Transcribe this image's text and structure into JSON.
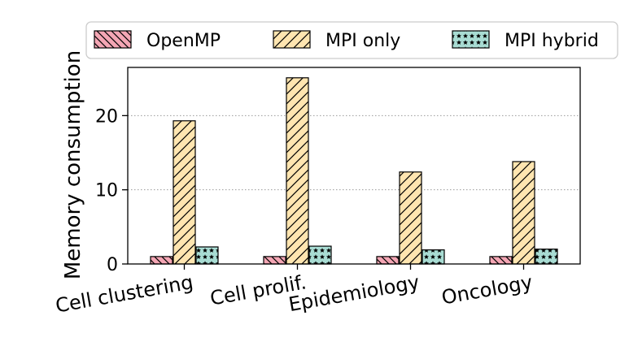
{
  "chart_data": {
    "type": "bar",
    "title": "",
    "xlabel": "",
    "ylabel": "Memory consumption",
    "ylim": [
      0,
      26.5
    ],
    "yticks": [
      0,
      10,
      20
    ],
    "grid": "y",
    "legend_position": "top",
    "categories": [
      "Cell clustering",
      "Cell prolif.",
      "Epidemiology",
      "Oncology"
    ],
    "series": [
      {
        "name": "OpenMP",
        "values": [
          1.0,
          1.0,
          1.0,
          1.0
        ],
        "color": "#f4a6b4",
        "hatch": "backslash"
      },
      {
        "name": "MPI only",
        "values": [
          19.3,
          25.1,
          12.4,
          13.8
        ],
        "color": "#ffe5b0",
        "hatch": "slash"
      },
      {
        "name": "MPI hybrid",
        "values": [
          2.3,
          2.4,
          1.9,
          2.0
        ],
        "color": "#a8dcd3",
        "hatch": "stars"
      }
    ]
  }
}
